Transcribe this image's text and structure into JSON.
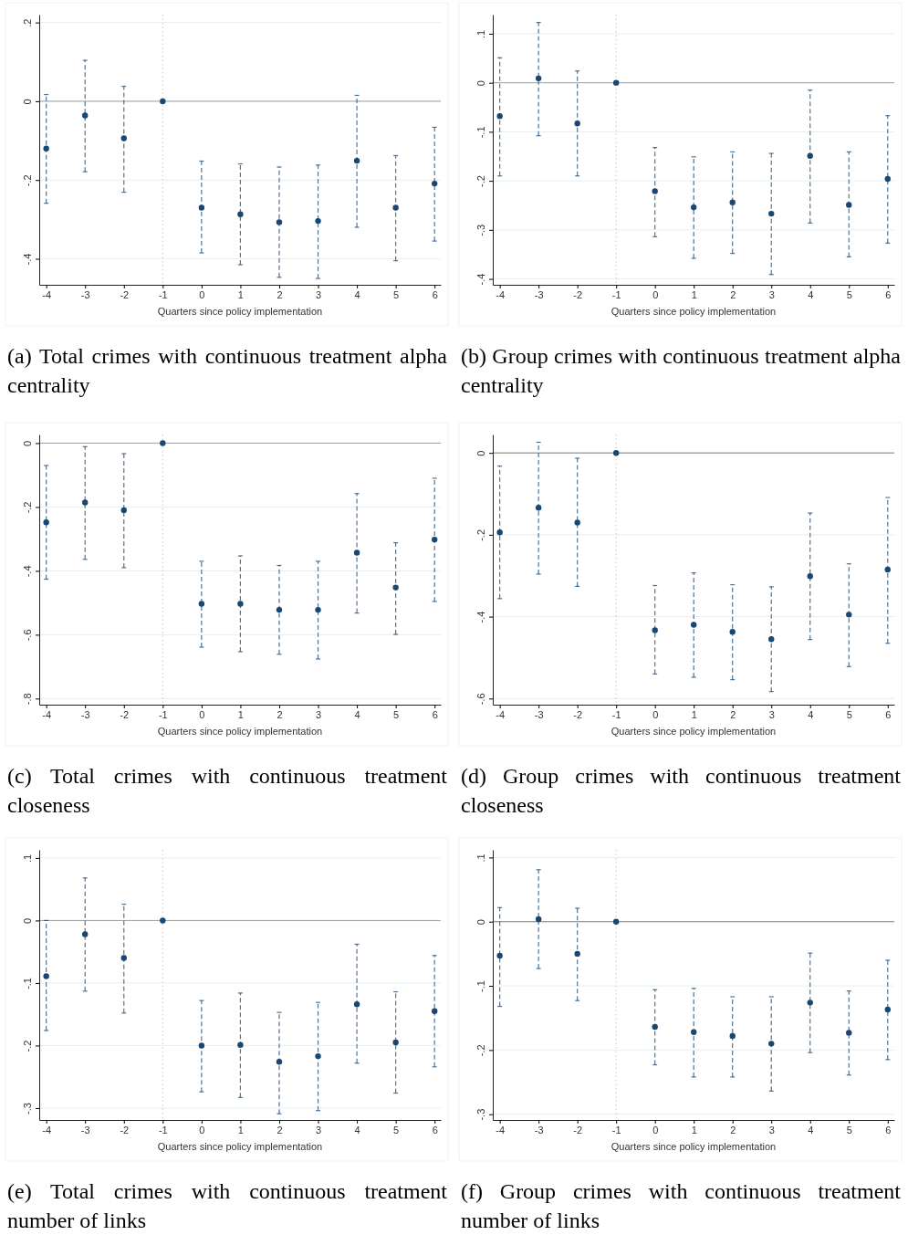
{
  "chart_data": [
    {
      "type": "scatter",
      "xlabel": "Quarters since policy implementation",
      "x": [
        -4,
        -3,
        -2,
        -1,
        0,
        1,
        2,
        3,
        4,
        5,
        6
      ],
      "xlim": [
        -4.18,
        6.16
      ],
      "xticks": [
        -4,
        -3,
        -2,
        -1,
        0,
        1,
        2,
        3,
        4,
        5,
        6
      ],
      "ylim": [
        -0.466,
        0.22
      ],
      "yticks": [
        {
          "value": 0.2,
          "label": ".2"
        },
        {
          "value": 0,
          "label": "0"
        },
        {
          "value": -0.2,
          "label": "-.2"
        },
        {
          "value": -0.4,
          "label": "-.4"
        }
      ],
      "grid": "y",
      "marker": "circle",
      "series": [
        {
          "color": "#1a476f",
          "values": [
            -0.12,
            -0.036,
            -0.094,
            0,
            -0.27,
            -0.287,
            -0.307,
            -0.304,
            -0.151,
            -0.27,
            -0.209
          ],
          "errors": [
            [
              -0.259,
              0.017
            ],
            [
              -0.179,
              0.104
            ],
            [
              -0.231,
              0.038
            ],
            null,
            [
              -0.385,
              -0.152
            ],
            [
              -0.415,
              -0.159
            ],
            [
              -0.447,
              -0.167
            ],
            [
              -0.45,
              -0.162
            ],
            [
              -0.32,
              0.015
            ],
            [
              -0.405,
              -0.138
            ],
            [
              -0.355,
              -0.066
            ]
          ]
        }
      ],
      "ref_lines": [
        {
          "axis": "y",
          "value": 0,
          "color": "#a0a0a0",
          "line_style": "solid"
        },
        {
          "axis": "x",
          "value": -1,
          "color": "#c8c8c8",
          "line_style": "dotted"
        }
      ],
      "annotations": [
        "(a) Total crimes with continuous treatment alpha centrality"
      ]
    },
    {
      "type": "scatter",
      "xlabel": "Quarters since policy implementation",
      "x": [
        -4,
        -3,
        -2,
        -1,
        0,
        1,
        2,
        3,
        4,
        5,
        6
      ],
      "xlim": [
        -4.18,
        6.17
      ],
      "xticks": [
        -4,
        -3,
        -2,
        -1,
        0,
        1,
        2,
        3,
        4,
        5,
        6
      ],
      "ylim": [
        -0.412,
        0.139
      ],
      "yticks": [
        {
          "value": 0.1,
          "label": ".1"
        },
        {
          "value": 0,
          "label": "0"
        },
        {
          "value": -0.1,
          "label": "-.1"
        },
        {
          "value": -0.2,
          "label": "-.2"
        },
        {
          "value": -0.3,
          "label": "-.3"
        },
        {
          "value": -0.4,
          "label": "-.4"
        }
      ],
      "grid": "y",
      "marker": "circle",
      "series": [
        {
          "color": "#1a476f",
          "values": [
            -0.068,
            0.009,
            -0.083,
            0,
            -0.221,
            -0.254,
            -0.244,
            -0.267,
            -0.149,
            -0.249,
            -0.196
          ],
          "errors": [
            [
              -0.19,
              0.051
            ],
            [
              -0.108,
              0.123
            ],
            [
              -0.19,
              0.024
            ],
            null,
            [
              -0.314,
              -0.132
            ],
            [
              -0.358,
              -0.151
            ],
            [
              -0.348,
              -0.141
            ],
            [
              -0.391,
              -0.144
            ],
            [
              -0.286,
              -0.015
            ],
            [
              -0.355,
              -0.141
            ],
            [
              -0.327,
              -0.067
            ]
          ]
        }
      ],
      "ref_lines": [
        {
          "axis": "y",
          "value": 0,
          "color": "#a0a0a0",
          "line_style": "solid"
        },
        {
          "axis": "x",
          "value": -1,
          "color": "#c8c8c8",
          "line_style": "dotted"
        }
      ],
      "annotations": [
        "(b) Group crimes with continuous treatment alpha centrality"
      ]
    },
    {
      "type": "scatter",
      "xlabel": "Quarters since policy implementation",
      "x": [
        -4,
        -3,
        -2,
        -1,
        0,
        1,
        2,
        3,
        4,
        5,
        6
      ],
      "xlim": [
        -4.18,
        6.16
      ],
      "xticks": [
        -4,
        -3,
        -2,
        -1,
        0,
        1,
        2,
        3,
        4,
        5,
        6
      ],
      "ylim": [
        -0.819,
        0.027
      ],
      "yticks": [
        {
          "value": 0,
          "label": "0"
        },
        {
          "value": -0.2,
          "label": "-.2"
        },
        {
          "value": -0.4,
          "label": "-.4"
        },
        {
          "value": -0.6,
          "label": "-.6"
        },
        {
          "value": -0.8,
          "label": "-.8"
        }
      ],
      "grid": "y",
      "marker": "circle",
      "series": [
        {
          "color": "#1a476f",
          "values": [
            -0.248,
            -0.186,
            -0.21,
            0,
            -0.503,
            -0.503,
            -0.522,
            -0.522,
            -0.343,
            -0.452,
            -0.302
          ],
          "errors": [
            [
              -0.426,
              -0.07
            ],
            [
              -0.364,
              -0.011
            ],
            [
              -0.39,
              -0.033
            ],
            null,
            [
              -0.639,
              -0.37
            ],
            [
              -0.653,
              -0.353
            ],
            [
              -0.661,
              -0.383
            ],
            [
              -0.676,
              -0.37
            ],
            [
              -0.532,
              -0.158
            ],
            [
              -0.599,
              -0.312
            ],
            [
              -0.496,
              -0.11
            ]
          ]
        }
      ],
      "ref_lines": [
        {
          "axis": "y",
          "value": 0,
          "color": "#a0a0a0",
          "line_style": "solid"
        },
        {
          "axis": "x",
          "value": -1,
          "color": "#c8c8c8",
          "line_style": "dotted"
        }
      ],
      "annotations": [
        "(c) Total crimes with continuous treatment closeness"
      ]
    },
    {
      "type": "scatter",
      "xlabel": "Quarters since policy implementation",
      "x": [
        -4,
        -3,
        -2,
        -1,
        0,
        1,
        2,
        3,
        4,
        5,
        6
      ],
      "xlim": [
        -4.18,
        6.17
      ],
      "xticks": [
        -4,
        -3,
        -2,
        -1,
        0,
        1,
        2,
        3,
        4,
        5,
        6
      ],
      "ylim": [
        -0.615,
        0.045
      ],
      "yticks": [
        {
          "value": 0,
          "label": "0"
        },
        {
          "value": -0.2,
          "label": "-.2"
        },
        {
          "value": -0.4,
          "label": "-.4"
        },
        {
          "value": -0.6,
          "label": "-.6"
        }
      ],
      "grid": "y",
      "marker": "circle",
      "series": [
        {
          "color": "#1a476f",
          "values": [
            -0.194,
            -0.134,
            -0.17,
            0,
            -0.433,
            -0.42,
            -0.437,
            -0.455,
            -0.301,
            -0.395,
            -0.285
          ],
          "errors": [
            [
              -0.356,
              -0.032
            ],
            [
              -0.296,
              0.026
            ],
            [
              -0.326,
              -0.013
            ],
            null,
            [
              -0.54,
              -0.324
            ],
            [
              -0.548,
              -0.293
            ],
            [
              -0.554,
              -0.322
            ],
            [
              -0.583,
              -0.327
            ],
            [
              -0.456,
              -0.147
            ],
            [
              -0.522,
              -0.271
            ],
            [
              -0.465,
              -0.109
            ]
          ]
        }
      ],
      "ref_lines": [
        {
          "axis": "y",
          "value": 0,
          "color": "#808080",
          "line_style": "solid"
        },
        {
          "axis": "x",
          "value": -1,
          "color": "#c8c8c8",
          "line_style": "dotted"
        }
      ],
      "annotations": [
        "(d) Group crimes with continuous treatment closeness"
      ]
    },
    {
      "type": "scatter",
      "xlabel": "Quarters since policy implementation",
      "x": [
        -4,
        -3,
        -2,
        -1,
        0,
        1,
        2,
        3,
        4,
        5,
        6
      ],
      "xlim": [
        -4.18,
        6.16
      ],
      "xticks": [
        -4,
        -3,
        -2,
        -1,
        0,
        1,
        2,
        3,
        4,
        5,
        6
      ],
      "ylim": [
        -0.319,
        0.113
      ],
      "yticks": [
        {
          "value": 0.1,
          "label": ".1"
        },
        {
          "value": 0,
          "label": "0"
        },
        {
          "value": -0.1,
          "label": "-.1"
        },
        {
          "value": -0.2,
          "label": "-.2"
        },
        {
          "value": -0.3,
          "label": "-.3"
        }
      ],
      "grid": "y",
      "marker": "circle",
      "series": [
        {
          "color": "#1a476f",
          "values": [
            -0.089,
            -0.022,
            -0.06,
            0,
            -0.2,
            -0.199,
            -0.226,
            -0.217,
            -0.134,
            -0.195,
            -0.145
          ],
          "errors": [
            [
              -0.176,
              0.0
            ],
            [
              -0.113,
              0.068
            ],
            [
              -0.148,
              0.026
            ],
            null,
            [
              -0.274,
              -0.128
            ],
            [
              -0.283,
              -0.116
            ],
            [
              -0.309,
              -0.147
            ],
            [
              -0.304,
              -0.131
            ],
            [
              -0.228,
              -0.038
            ],
            [
              -0.276,
              -0.114
            ],
            [
              -0.234,
              -0.056
            ]
          ]
        }
      ],
      "ref_lines": [
        {
          "axis": "y",
          "value": 0,
          "color": "#a0a0a0",
          "line_style": "solid"
        },
        {
          "axis": "x",
          "value": -1,
          "color": "#c8c8c8",
          "line_style": "dotted"
        }
      ],
      "annotations": [
        "(e) Total crimes with continuous treatment number of links"
      ]
    },
    {
      "type": "scatter",
      "xlabel": "Quarters since policy implementation",
      "x": [
        -4,
        -3,
        -2,
        -1,
        0,
        1,
        2,
        3,
        4,
        5,
        6
      ],
      "xlim": [
        -4.18,
        6.17
      ],
      "xticks": [
        -4,
        -3,
        -2,
        -1,
        0,
        1,
        2,
        3,
        4,
        5,
        6
      ],
      "ylim": [
        -0.309,
        0.112
      ],
      "yticks": [
        {
          "value": 0.1,
          "label": ".1"
        },
        {
          "value": 0,
          "label": "0"
        },
        {
          "value": -0.1,
          "label": "-.1"
        },
        {
          "value": -0.2,
          "label": "-.2"
        },
        {
          "value": -0.3,
          "label": "-.3"
        }
      ],
      "grid": "y",
      "marker": "circle",
      "series": [
        {
          "color": "#1a476f",
          "values": [
            -0.053,
            0.004,
            -0.05,
            0,
            -0.164,
            -0.172,
            -0.178,
            -0.19,
            -0.126,
            -0.173,
            -0.137
          ],
          "errors": [
            [
              -0.132,
              0.022
            ],
            [
              -0.073,
              0.081
            ],
            [
              -0.123,
              0.021
            ],
            null,
            [
              -0.223,
              -0.106
            ],
            [
              -0.242,
              -0.104
            ],
            [
              -0.242,
              -0.117
            ],
            [
              -0.264,
              -0.117
            ],
            [
              -0.204,
              -0.049
            ],
            [
              -0.239,
              -0.108
            ],
            [
              -0.215,
              -0.06
            ]
          ]
        }
      ],
      "ref_lines": [
        {
          "axis": "y",
          "value": 0,
          "color": "#808080",
          "line_style": "solid"
        },
        {
          "axis": "x",
          "value": -1,
          "color": "#c8c8c8",
          "line_style": "dotted"
        }
      ],
      "annotations": [
        "(f) Group crimes with continuous treatment number of links"
      ]
    }
  ]
}
